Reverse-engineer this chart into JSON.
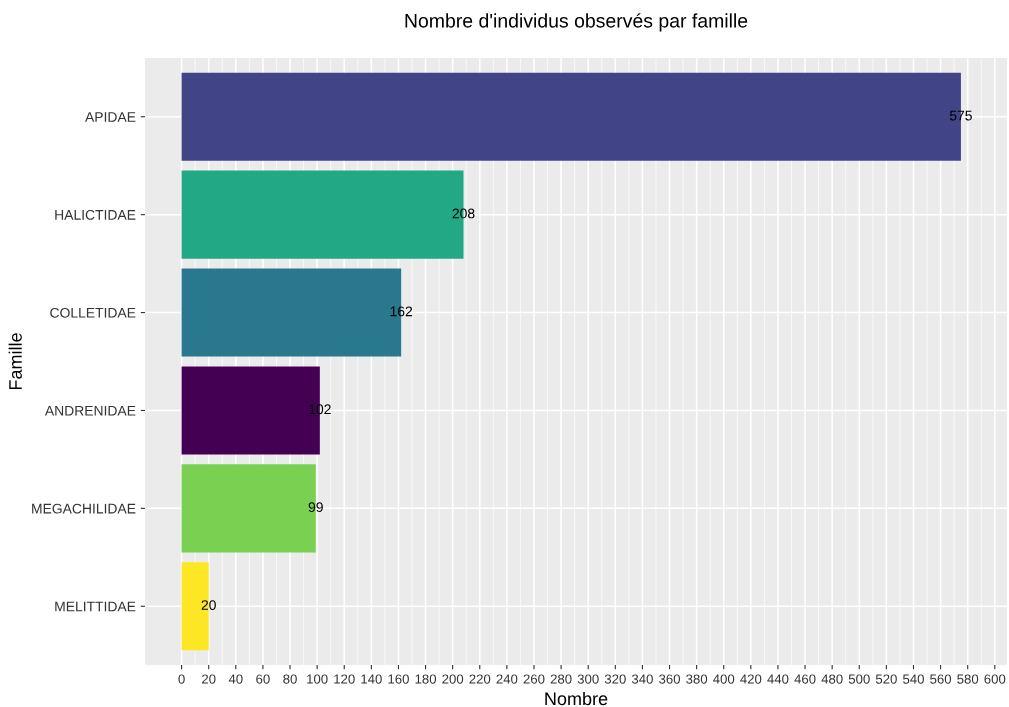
{
  "chart_data": {
    "type": "bar",
    "orientation": "horizontal",
    "title": "Nombre d'individus observés par famille",
    "xlabel": "Nombre",
    "ylabel": "Famille",
    "categories": [
      "APIDAE",
      "HALICTIDAE",
      "COLLETIDAE",
      "ANDRENIDAE",
      "MEGACHILIDAE",
      "MELITTIDAE"
    ],
    "values": [
      575,
      208,
      162,
      102,
      99,
      20
    ],
    "colors": [
      "#414487",
      "#22a884",
      "#2a788e",
      "#440154",
      "#7ad151",
      "#fde725"
    ],
    "xlim": [
      -27,
      609
    ],
    "xticks": [
      0,
      20,
      40,
      60,
      80,
      100,
      120,
      140,
      160,
      180,
      200,
      220,
      240,
      260,
      280,
      300,
      320,
      340,
      360,
      380,
      400,
      420,
      440,
      460,
      480,
      500,
      520,
      540,
      560,
      580,
      600
    ],
    "data_labels": true,
    "grid": true,
    "legend": false
  }
}
